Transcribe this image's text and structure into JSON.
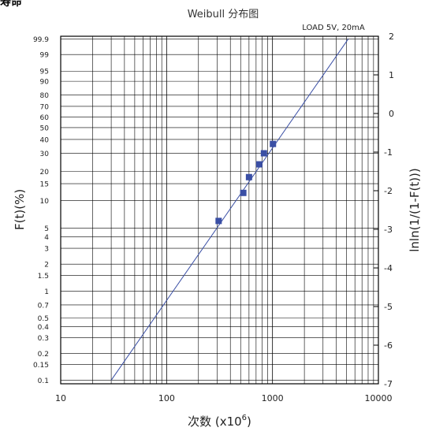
{
  "page": {
    "top_label": "寿命"
  },
  "chart_data": {
    "type": "scatter",
    "title": "Weibull 分布图",
    "annotation": "LOAD 5V, 20mA",
    "xlabel": "次数 (x10",
    "xlabel_exponent": "6",
    "xlabel_suffix": ")",
    "ylabel": "F(t)(%)",
    "y2label": "lnln(1/(1-F(t)))",
    "xscale": "log",
    "xlim": [
      10,
      10000
    ],
    "x_ticks": [
      {
        "value": 10,
        "label": "10"
      },
      {
        "value": 100,
        "label": "100"
      },
      {
        "value": 1000,
        "label": "1000"
      },
      {
        "value": 10000,
        "label": "10000"
      }
    ],
    "y2lim": [
      -7,
      2
    ],
    "y_ticks": [
      {
        "value": 99.9,
        "label": "99.9"
      },
      {
        "value": 99,
        "label": "99"
      },
      {
        "value": 95,
        "label": "95"
      },
      {
        "value": 90,
        "label": "90"
      },
      {
        "value": 80,
        "label": "80"
      },
      {
        "value": 70,
        "label": "70"
      },
      {
        "value": 60,
        "label": "60"
      },
      {
        "value": 50,
        "label": "50"
      },
      {
        "value": 40,
        "label": "40"
      },
      {
        "value": 30,
        "label": "30"
      },
      {
        "value": 20,
        "label": "20"
      },
      {
        "value": 15,
        "label": "15"
      },
      {
        "value": 10,
        "label": "10"
      },
      {
        "value": 5,
        "label": "5"
      },
      {
        "value": 4,
        "label": "4"
      },
      {
        "value": 3,
        "label": "3"
      },
      {
        "value": 2,
        "label": "2"
      },
      {
        "value": 1.5,
        "label": "1.5"
      },
      {
        "value": 1,
        "label": "1"
      },
      {
        "value": 0.7,
        "label": "0.7"
      },
      {
        "value": 0.5,
        "label": "0.5"
      },
      {
        "value": 0.4,
        "label": "0.4"
      },
      {
        "value": 0.3,
        "label": "0.3"
      },
      {
        "value": 0.2,
        "label": "0.2"
      },
      {
        "value": 0.15,
        "label": "0.15"
      },
      {
        "value": 0.1,
        "label": "0.1"
      }
    ],
    "y2_ticks": [
      {
        "value": 2,
        "label": "2"
      },
      {
        "value": 1,
        "label": "1"
      },
      {
        "value": 0,
        "label": "0"
      },
      {
        "value": -1,
        "label": "-1"
      },
      {
        "value": -2,
        "label": "-2"
      },
      {
        "value": -3,
        "label": "-3"
      },
      {
        "value": -4,
        "label": "-4"
      },
      {
        "value": -5,
        "label": "-5"
      },
      {
        "value": -6,
        "label": "-6"
      },
      {
        "value": -7,
        "label": "-7"
      }
    ],
    "points": [
      {
        "x": 310,
        "F": 6
      },
      {
        "x": 530,
        "F": 12
      },
      {
        "x": 600,
        "F": 17.5
      },
      {
        "x": 750,
        "F": 23.5
      },
      {
        "x": 830,
        "F": 30
      },
      {
        "x": 1010,
        "F": 36.5
      }
    ],
    "fit_line": {
      "x1": 30,
      "F1": 0.1,
      "x2": 5200,
      "F2": 99.9
    },
    "grid": true,
    "colors": {
      "marker": "#3a4fa5",
      "line": "#3a4fa5",
      "grid": "#000000"
    }
  }
}
